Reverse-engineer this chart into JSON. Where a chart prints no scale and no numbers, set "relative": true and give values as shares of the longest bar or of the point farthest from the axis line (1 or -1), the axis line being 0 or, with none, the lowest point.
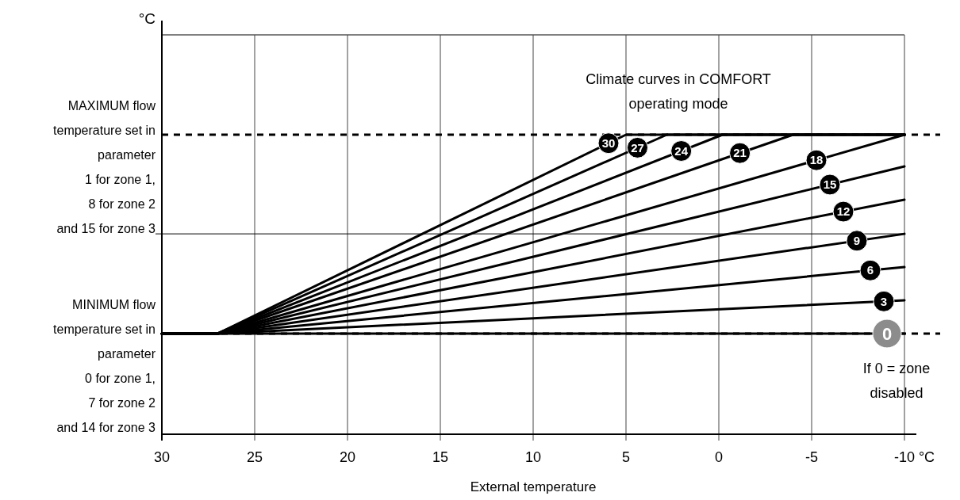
{
  "chart_data": {
    "type": "line",
    "relative": true,
    "title": "Climate curves in COMFORT operating mode",
    "xlabel": "External temperature",
    "xlim": [
      30,
      -10
    ],
    "xticks": [
      30,
      25,
      20,
      15,
      10,
      5,
      0,
      -5,
      -10
    ],
    "grid": "x",
    "legend": "right",
    "marker": "none",
    "line_style": "solid",
    "series": [
      {
        "name": "30",
        "color": "#000000",
        "x": [
          30,
          27,
          5,
          -10
        ],
        "values": [
          0.336,
          0.336,
          1,
          1
        ]
      },
      {
        "name": "27",
        "color": "#000000",
        "x": [
          30,
          27,
          2.8,
          -10
        ],
        "values": [
          0.336,
          0.336,
          1,
          1
        ]
      },
      {
        "name": "24",
        "color": "#000000",
        "x": [
          30,
          27,
          -0.2,
          -10
        ],
        "values": [
          0.336,
          0.336,
          1,
          1
        ]
      },
      {
        "name": "21",
        "color": "#000000",
        "x": [
          30,
          27,
          -4,
          -10
        ],
        "values": [
          0.336,
          0.336,
          1,
          1
        ]
      },
      {
        "name": "18",
        "color": "#000000",
        "x": [
          30,
          27,
          -10
        ],
        "values": [
          0.336,
          0.336,
          1
        ]
      },
      {
        "name": "15",
        "color": "#000000",
        "x": [
          30,
          27,
          -10
        ],
        "values": [
          0.336,
          0.336,
          0.894
        ]
      },
      {
        "name": "12",
        "color": "#000000",
        "x": [
          30,
          27,
          -10
        ],
        "values": [
          0.336,
          0.336,
          0.783
        ]
      },
      {
        "name": "9",
        "color": "#000000",
        "x": [
          30,
          27,
          -10
        ],
        "values": [
          0.336,
          0.336,
          0.669
        ]
      },
      {
        "name": "6",
        "color": "#000000",
        "x": [
          30,
          27,
          -10
        ],
        "values": [
          0.336,
          0.336,
          0.558
        ]
      },
      {
        "name": "3",
        "color": "#000000",
        "x": [
          30,
          27,
          -10
        ],
        "values": [
          0.336,
          0.336,
          0.447
        ]
      },
      {
        "name": "0",
        "color": "#000000",
        "x": [
          30,
          -10
        ],
        "values": [
          0.336,
          0.336
        ]
      }
    ],
    "ref_lines": [
      {
        "axis": "y",
        "value": 1,
        "label": "MAXIMUM flow\ntemperature set in\nparameter\n1 for zone 1,\n8 for zone 2\nand 15 for zone 3",
        "color": "#000000",
        "line_style": "dashed"
      },
      {
        "axis": "y",
        "value": 0.669,
        "color": "#000000",
        "line_style": "solid"
      },
      {
        "axis": "y",
        "value": 0.336,
        "label": "MINIMUM flow\ntemperature set in\nparameter\n0 for zone 1,\n7 for zone 2\nand 14 for zone 3",
        "color": "#000000",
        "line_style": "dashed"
      }
    ],
    "annotations": [
      {
        "text": "If 0 = zone disabled",
        "x": -10,
        "y": 0.336
      },
      "°C",
      "°C"
    ]
  }
}
